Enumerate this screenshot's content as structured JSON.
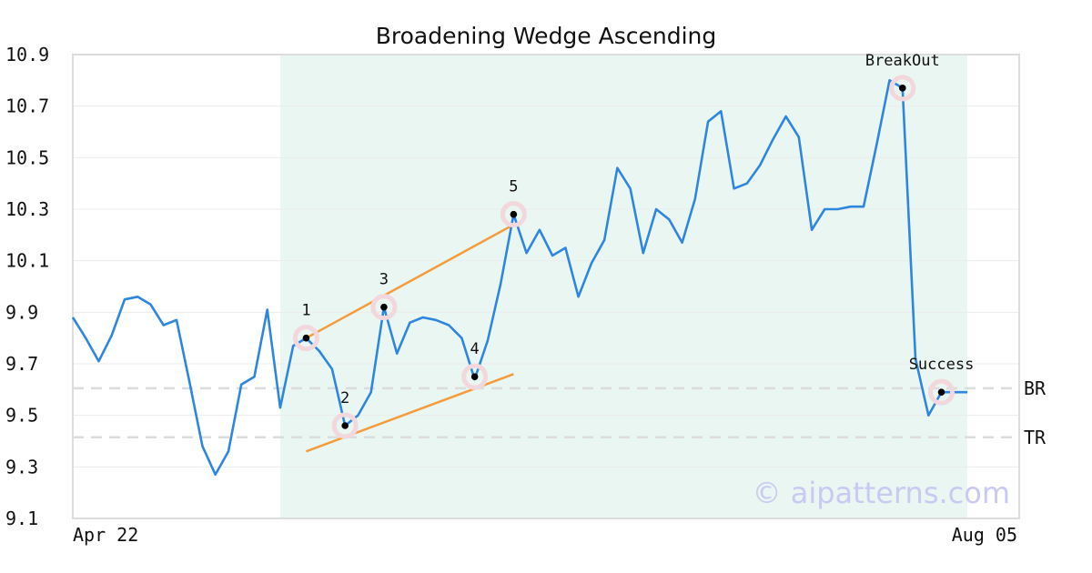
{
  "chart_data": {
    "type": "line",
    "title": "Broadening Wedge Ascending",
    "x_tick_labels": [
      "Apr 22",
      "Aug 05"
    ],
    "y_ticks": [
      9.1,
      9.3,
      9.5,
      9.7,
      9.9,
      10.1,
      10.3,
      10.5,
      10.7,
      10.9
    ],
    "y_tick_labels": [
      "9.1",
      "9.3",
      "9.5",
      "9.7",
      "9.9",
      "10.1",
      "10.3",
      "10.5",
      "10.7",
      "10.9"
    ],
    "ylim": [
      9.1,
      10.9
    ],
    "x_index_range": [
      0,
      73
    ],
    "grid": "horizontal",
    "series_color": "#2e86de",
    "trendline_color": "#f39c3d",
    "highlight_color": "#eaf6f1",
    "marker_ring_color": "#f2d7dc",
    "highlight_range": [
      16,
      69
    ],
    "series": [
      {
        "values": [
          9.88,
          9.8,
          9.71,
          9.81,
          9.95,
          9.96,
          9.93,
          9.85,
          9.87,
          9.63,
          9.38,
          9.27,
          9.36,
          9.62,
          9.65,
          9.91,
          9.53,
          9.77,
          9.8,
          9.75,
          9.68,
          9.46,
          9.5,
          9.59,
          9.92,
          9.74,
          9.86,
          9.88,
          9.87,
          9.85,
          9.8,
          9.64,
          9.79,
          10.01,
          10.28,
          10.13,
          10.22,
          10.12,
          10.15,
          9.96,
          10.09,
          10.18,
          10.46,
          10.38,
          10.13,
          10.3,
          10.26,
          10.17,
          10.34,
          10.64,
          10.68,
          10.38,
          10.4,
          10.47,
          10.57,
          10.66,
          10.58,
          10.22,
          10.3,
          10.3,
          10.31,
          10.31,
          10.55,
          10.8,
          10.77,
          9.72,
          9.5,
          9.59,
          9.59,
          9.59
        ]
      }
    ],
    "trendlines": [
      {
        "x": [
          18,
          34
        ],
        "y": [
          9.8,
          10.24
        ]
      },
      {
        "x": [
          18,
          34
        ],
        "y": [
          9.36,
          9.66
        ]
      }
    ],
    "reference_lines": [
      {
        "label": "BR",
        "y": 9.605
      },
      {
        "label": "TR",
        "y": 9.415
      }
    ],
    "annotations": [
      {
        "label": "1",
        "x": 18,
        "y": 9.8,
        "text_pos": "above"
      },
      {
        "label": "2",
        "x": 21,
        "y": 9.46,
        "text_pos": "above"
      },
      {
        "label": "3",
        "x": 24,
        "y": 9.92,
        "text_pos": "above"
      },
      {
        "label": "4",
        "x": 31,
        "y": 9.65,
        "text_pos": "above"
      },
      {
        "label": "5",
        "x": 34,
        "y": 10.28,
        "text_pos": "above"
      },
      {
        "label": "BreakOut",
        "x": 64,
        "y": 10.77,
        "text_pos": "above"
      },
      {
        "label": "Success",
        "x": 67,
        "y": 9.59,
        "text_pos": "above"
      }
    ],
    "watermark": "© aipatterns.com"
  }
}
